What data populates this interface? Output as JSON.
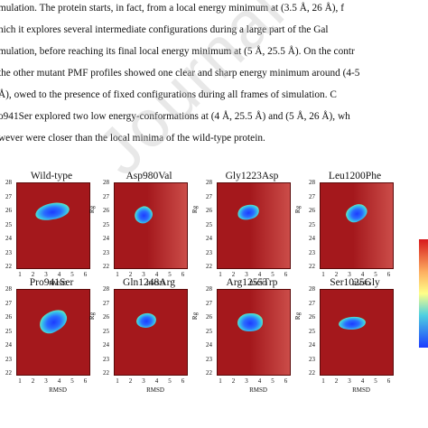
{
  "text_lines": [
    "mulation. The protein starts, in fact, from a local energy minimum at (3.5 Å, 26 Å), f",
    "hich it explores several intermediate configurations during a large part of the Gal",
    "mulation, before reaching its final local energy minimum at (5 Å, 25.5 Å). On the contr",
    "the other mutant PMF profiles showed one clear and sharp energy minimum around (4-5",
    "Å), owed to the presence of fixed configurations during all frames of simulation. C",
    "o941Ser explored two low energy-conformations at (4 Å, 25.5 Å) and (5 Å, 26 Å), wh",
    "wever were closer than the local minima of the wild-type protein."
  ],
  "watermark": "Journal Pre-proofs",
  "panels": [
    {
      "title": "Wild-type"
    },
    {
      "title": "Asp980Val"
    },
    {
      "title": "Gly1223Asp"
    },
    {
      "title": "Leu1200Phe"
    },
    {
      "title": "Pro941Ser"
    },
    {
      "title": "Gln1248Arg"
    },
    {
      "title": "Arg1255Trp"
    },
    {
      "title": "Ser1025Gly"
    }
  ],
  "axis": {
    "x_label": "RMSD",
    "y_label": "Rg",
    "x_ticks": [
      "1",
      "2",
      "3",
      "4",
      "5",
      "6"
    ],
    "y_ticks": [
      "28",
      "27",
      "26",
      "25",
      "24",
      "23",
      "22"
    ]
  },
  "colors": {
    "background_field": "#a4181c",
    "minimum_core": "#1c3cff",
    "minimum_rim": "#ffff88"
  }
}
